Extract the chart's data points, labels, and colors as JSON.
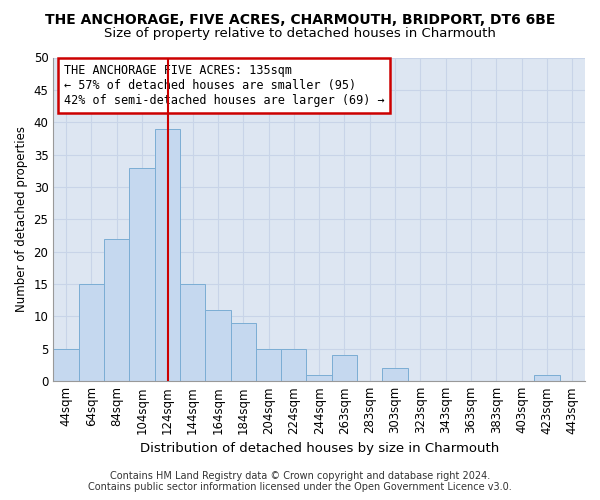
{
  "title": "THE ANCHORAGE, FIVE ACRES, CHARMOUTH, BRIDPORT, DT6 6BE",
  "subtitle": "Size of property relative to detached houses in Charmouth",
  "xlabel": "Distribution of detached houses by size in Charmouth",
  "ylabel": "Number of detached properties",
  "categories": [
    "44sqm",
    "64sqm",
    "84sqm",
    "104sqm",
    "124sqm",
    "144sqm",
    "164sqm",
    "184sqm",
    "204sqm",
    "224sqm",
    "244sqm",
    "263sqm",
    "283sqm",
    "303sqm",
    "323sqm",
    "343sqm",
    "363sqm",
    "383sqm",
    "403sqm",
    "423sqm",
    "443sqm"
  ],
  "values": [
    5,
    15,
    22,
    33,
    39,
    15,
    11,
    9,
    5,
    5,
    1,
    4,
    0,
    2,
    0,
    0,
    0,
    0,
    0,
    1,
    0
  ],
  "bar_color": "#c5d8ef",
  "bar_edge_color": "#7badd4",
  "vline_color": "#cc0000",
  "vline_pos": 4.55,
  "ylim": [
    0,
    50
  ],
  "yticks": [
    0,
    5,
    10,
    15,
    20,
    25,
    30,
    35,
    40,
    45,
    50
  ],
  "annotation_title": "THE ANCHORAGE FIVE ACRES: 135sqm",
  "annotation_line1": "← 57% of detached houses are smaller (95)",
  "annotation_line2": "42% of semi-detached houses are larger (69) →",
  "annotation_box_color": "#ffffff",
  "annotation_box_edge": "#cc0000",
  "grid_color": "#c8d4e8",
  "background_color": "#dde6f2",
  "footer1": "Contains HM Land Registry data © Crown copyright and database right 2024.",
  "footer2": "Contains public sector information licensed under the Open Government Licence v3.0.",
  "title_fontsize": 10,
  "subtitle_fontsize": 9.5,
  "xlabel_fontsize": 9.5,
  "ylabel_fontsize": 8.5,
  "tick_fontsize": 8.5,
  "ann_fontsize": 8.5,
  "footer_fontsize": 7.0
}
